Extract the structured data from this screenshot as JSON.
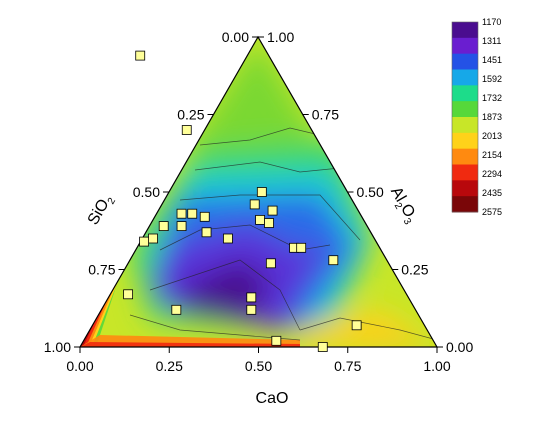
{
  "chart_data": {
    "type": "ternary-contour",
    "axes": {
      "bottom": {
        "label": "CaO",
        "ticks": [
          "0.00",
          "0.25",
          "0.50",
          "0.75",
          "1.00"
        ]
      },
      "left": {
        "label_base": "SiO",
        "label_sub": "2",
        "ticks": [
          "1.00",
          "0.75",
          "0.50",
          "0.25",
          "0.00"
        ]
      },
      "right": {
        "label_base": "Al",
        "label_sub1": "2",
        "label_mid": "O",
        "label_sub2": "3",
        "ticks": [
          "0.00",
          "0.25",
          "0.50",
          "0.75",
          "1.00"
        ]
      }
    },
    "colorbar": {
      "labels": [
        "1170",
        "1311",
        "1451",
        "1592",
        "1732",
        "1873",
        "2013",
        "2154",
        "2294",
        "2435",
        "2575"
      ],
      "colors": [
        "#4a0d8f",
        "#6a1ed0",
        "#2452e6",
        "#16a8e8",
        "#1ddc8a",
        "#56d83a",
        "#c8e628",
        "#ffd21a",
        "#ff8a10",
        "#f02a10",
        "#b8080c",
        "#7a0608"
      ]
    },
    "points": [
      {
        "cao": 0.64,
        "al2o3": 0.94
      },
      {
        "cao": 0.65,
        "al2o3": 0.7
      },
      {
        "cao": 0.76,
        "al2o3": 0.5
      },
      {
        "cao": 0.72,
        "al2o3": 0.46
      },
      {
        "cao": 0.76,
        "al2o3": 0.44
      },
      {
        "cao": 0.71,
        "al2o3": 0.41
      },
      {
        "cao": 0.73,
        "al2o3": 0.4
      },
      {
        "cao": 0.76,
        "al2o3": 0.32
      },
      {
        "cao": 0.78,
        "al2o3": 0.32
      },
      {
        "cao": 0.85,
        "al2o3": 0.28
      },
      {
        "cao": 0.5,
        "al2o3": 0.43
      },
      {
        "cao": 0.53,
        "al2o3": 0.43
      },
      {
        "cao": 0.56,
        "al2o3": 0.42
      },
      {
        "cao": 0.48,
        "al2o3": 0.39
      },
      {
        "cao": 0.54,
        "al2o3": 0.37
      },
      {
        "cao": 0.59,
        "al2o3": 0.35
      },
      {
        "cao": 0.43,
        "al2o3": 0.39
      },
      {
        "cao": 0.38,
        "al2o3": 0.35
      },
      {
        "cao": 0.35,
        "al2o3": 0.34
      },
      {
        "cao": 0.67,
        "al2o3": 0.27
      },
      {
        "cao": 0.22,
        "al2o3": 0.17
      },
      {
        "cao": 0.33,
        "al2o3": 0.12
      },
      {
        "cao": 0.56,
        "al2o3": 0.16
      },
      {
        "cao": 0.54,
        "al2o3": 0.12
      },
      {
        "cao": 0.56,
        "al2o3": 0.02
      },
      {
        "cao": 0.81,
        "al2o3": 0.07
      },
      {
        "cao": 0.68,
        "al2o3": 0.0
      }
    ]
  }
}
